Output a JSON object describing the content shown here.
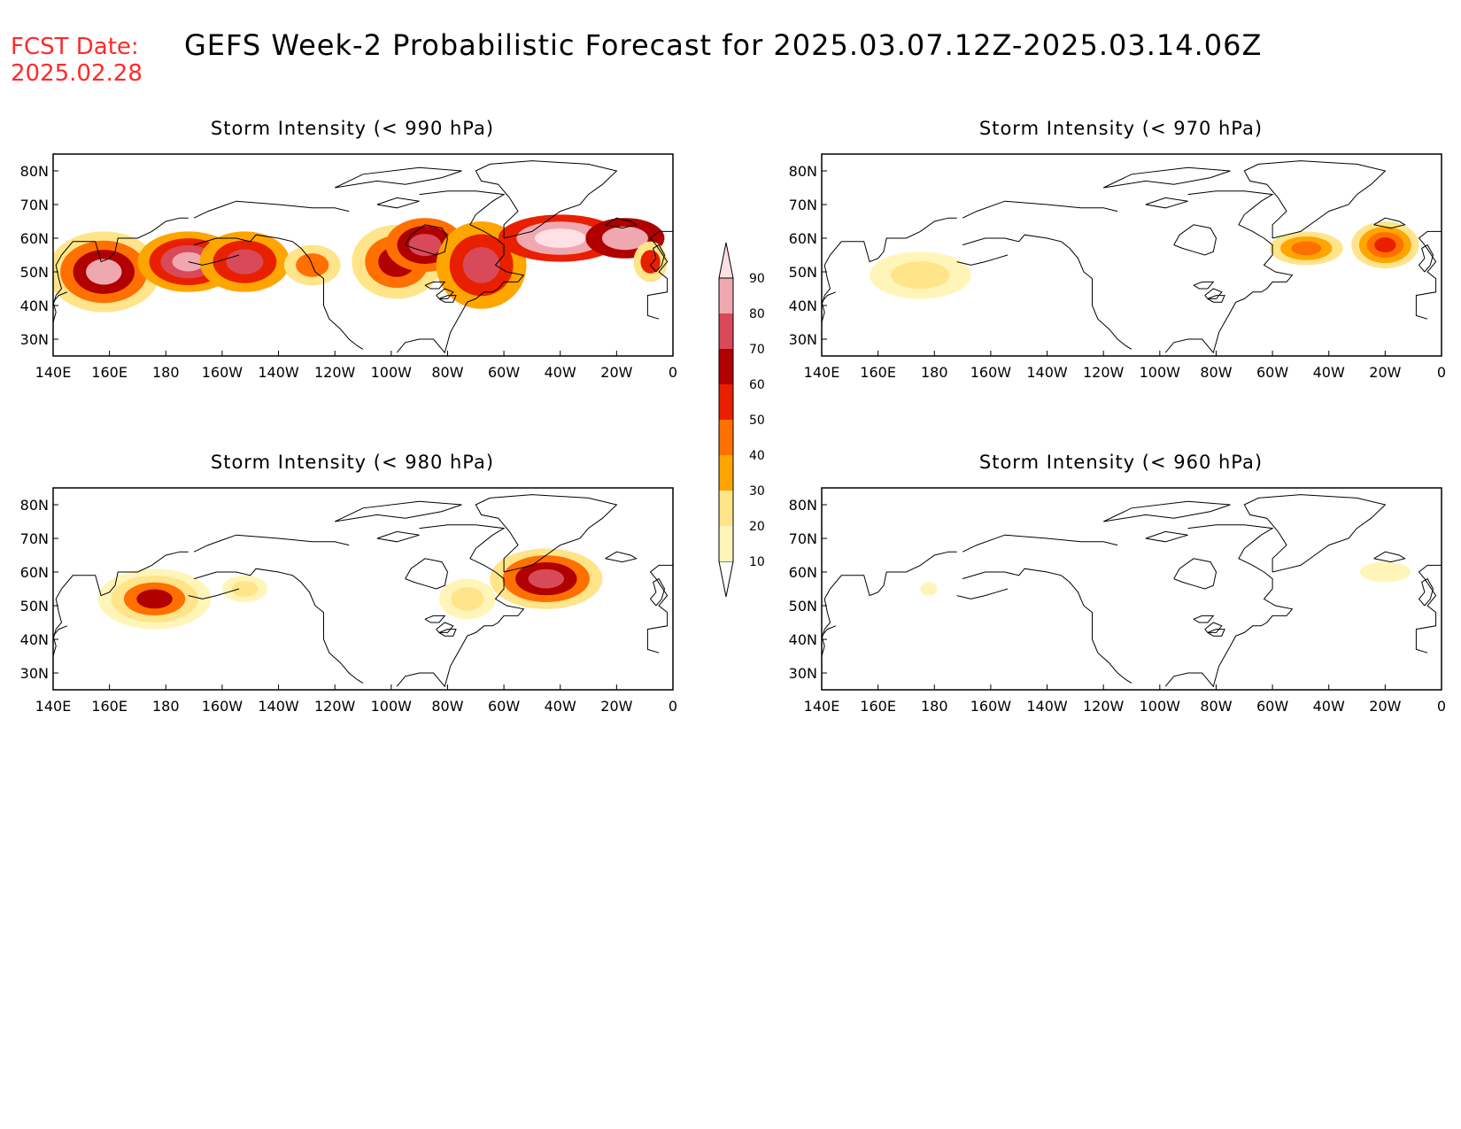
{
  "header": {
    "fcst_label": "FCST Date:",
    "fcst_date": "2025.02.28",
    "title": "GEFS Week-2 Probabilistic Forecast for 2025.03.07.12Z-2025.03.14.06Z"
  },
  "axes": {
    "lat_ticks": [
      "80N",
      "70N",
      "60N",
      "50N",
      "40N",
      "30N"
    ],
    "lat_values": [
      80,
      70,
      60,
      50,
      40,
      30
    ],
    "lon_ticks": [
      "140E",
      "160E",
      "180",
      "160W",
      "140W",
      "120W",
      "100W",
      "80W",
      "60W",
      "40W",
      "20W",
      "0"
    ],
    "lon_values": [
      140,
      160,
      180,
      200,
      220,
      240,
      260,
      280,
      300,
      320,
      340,
      360
    ],
    "lon_range": [
      140,
      360
    ],
    "lat_range": [
      25,
      85
    ]
  },
  "colorbar": {
    "levels": [
      "10",
      "20",
      "30",
      "40",
      "50",
      "60",
      "70",
      "80",
      "90"
    ],
    "colors": [
      "#fff5b8",
      "#ffe48a",
      "#ffa500",
      "#ff7000",
      "#e82000",
      "#b00000",
      "#d84a5a",
      "#f0a8b0",
      "#ffe0e4"
    ]
  },
  "panels": [
    {
      "id": "p990",
      "title": "Storm Intensity (< 990 hPa)",
      "blobs": [
        {
          "lon": 158,
          "lat": 50,
          "rl": 20,
          "rt": 12,
          "levels": [
            20,
            40,
            60,
            80
          ]
        },
        {
          "lon": 188,
          "lat": 53,
          "rl": 18,
          "rt": 9,
          "levels": [
            30,
            50,
            70,
            85
          ]
        },
        {
          "lon": 208,
          "lat": 53,
          "rl": 16,
          "rt": 9,
          "levels": [
            30,
            50,
            70
          ]
        },
        {
          "lon": 232,
          "lat": 52,
          "rl": 10,
          "rt": 6,
          "levels": [
            20,
            40
          ]
        },
        {
          "lon": 262,
          "lat": 53,
          "rl": 16,
          "rt": 11,
          "levels": [
            20,
            40,
            60
          ]
        },
        {
          "lon": 272,
          "lat": 58,
          "rl": 14,
          "rt": 8,
          "levels": [
            40,
            60,
            70
          ]
        },
        {
          "lon": 292,
          "lat": 52,
          "rl": 16,
          "rt": 13,
          "levels": [
            30,
            50,
            70
          ]
        },
        {
          "lon": 320,
          "lat": 60,
          "rl": 22,
          "rt": 7,
          "levels": [
            50,
            80,
            90
          ]
        },
        {
          "lon": 343,
          "lat": 60,
          "rl": 14,
          "rt": 6,
          "levels": [
            60,
            85
          ]
        },
        {
          "lon": 352,
          "lat": 53,
          "rl": 6,
          "rt": 6,
          "levels": [
            20,
            50
          ]
        }
      ]
    },
    {
      "id": "p970",
      "title": "Storm Intensity (< 970 hPa)",
      "blobs": [
        {
          "lon": 175,
          "lat": 49,
          "rl": 18,
          "rt": 7,
          "levels": [
            10,
            20
          ]
        },
        {
          "lon": 312,
          "lat": 57,
          "rl": 13,
          "rt": 5,
          "levels": [
            20,
            30,
            40
          ]
        },
        {
          "lon": 340,
          "lat": 58,
          "rl": 12,
          "rt": 7,
          "levels": [
            20,
            30,
            40,
            50
          ]
        }
      ]
    },
    {
      "id": "p980",
      "title": "Storm Intensity (< 980 hPa)",
      "blobs": [
        {
          "lon": 176,
          "lat": 52,
          "rl": 20,
          "rt": 9,
          "levels": [
            10,
            20,
            40,
            60
          ]
        },
        {
          "lon": 208,
          "lat": 55,
          "rl": 8,
          "rt": 4,
          "levels": [
            10,
            20
          ]
        },
        {
          "lon": 315,
          "lat": 58,
          "rl": 20,
          "rt": 9,
          "levels": [
            20,
            40,
            60,
            70
          ]
        },
        {
          "lon": 287,
          "lat": 52,
          "rl": 10,
          "rt": 6,
          "levels": [
            10,
            20
          ]
        }
      ]
    },
    {
      "id": "p960",
      "title": "Storm Intensity (< 960 hPa)",
      "blobs": [
        {
          "lon": 340,
          "lat": 60,
          "rl": 9,
          "rt": 3,
          "levels": [
            10
          ]
        },
        {
          "lon": 178,
          "lat": 55,
          "rl": 3,
          "rt": 2,
          "levels": [
            10
          ]
        }
      ]
    }
  ]
}
